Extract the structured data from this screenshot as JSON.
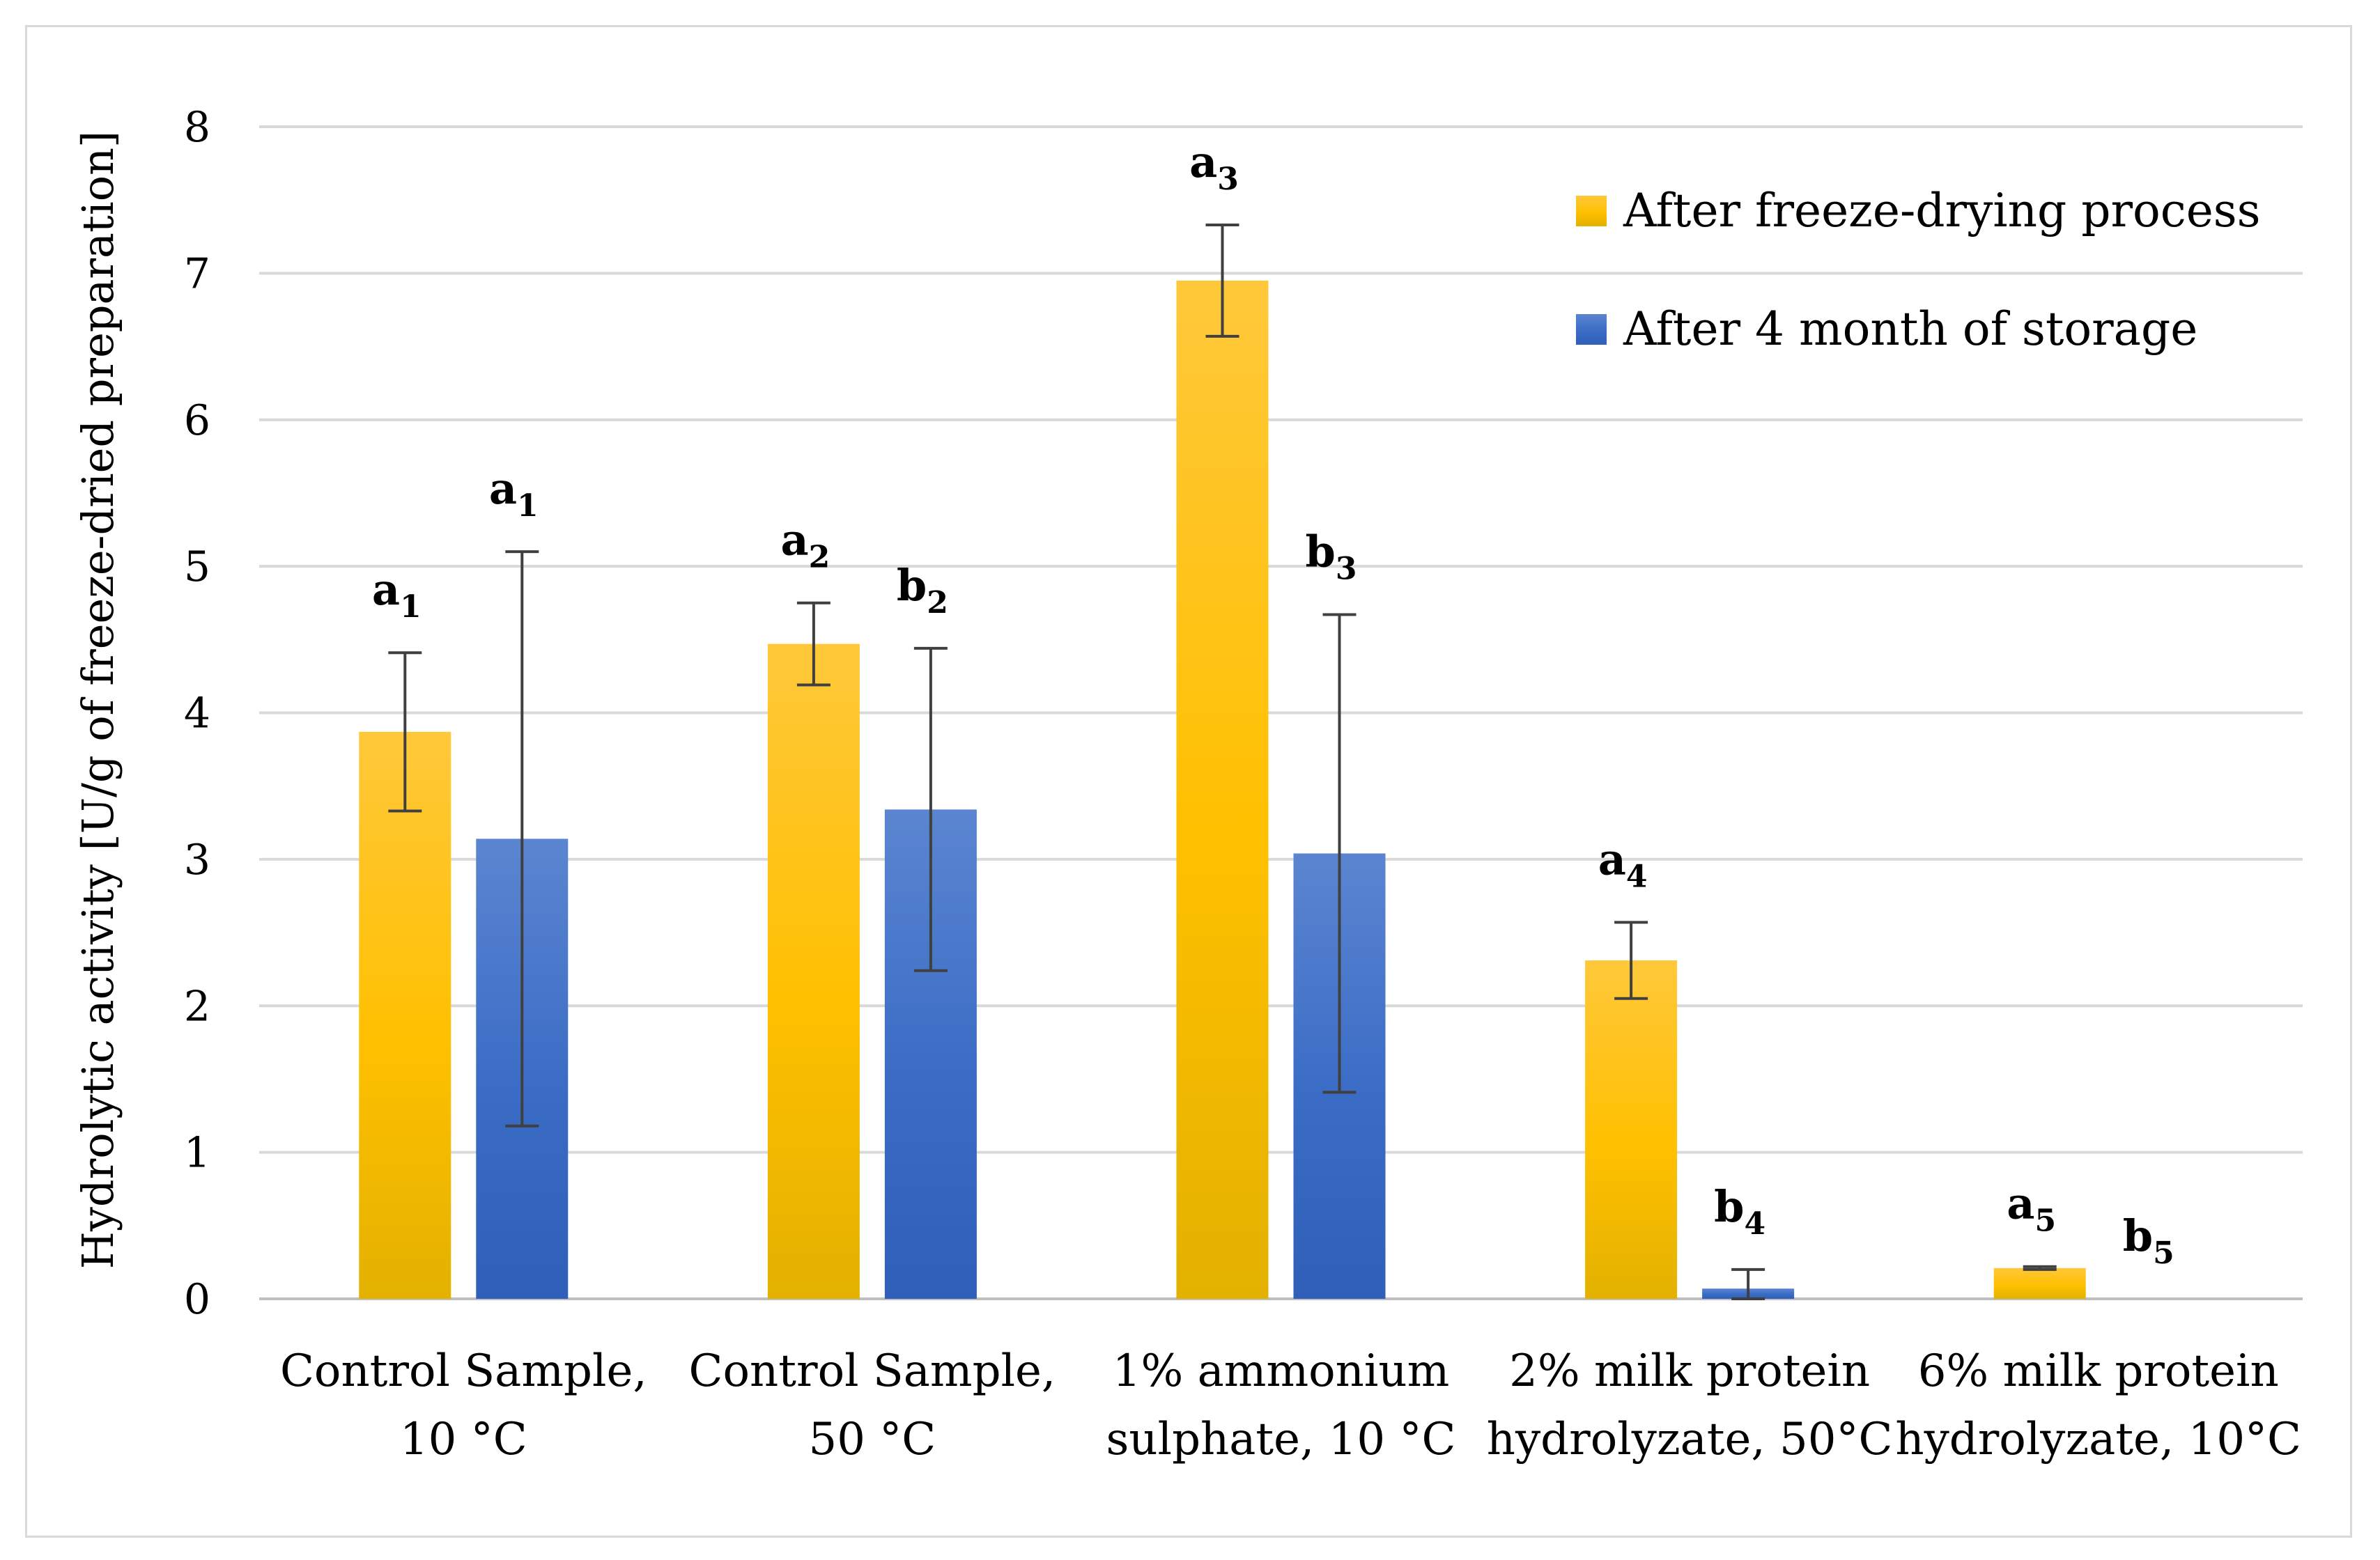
{
  "chart_data": {
    "type": "bar",
    "title": "",
    "xlabel": "",
    "ylabel": "Hydrolytic activity [U/g of freeze-dried preparation]",
    "ylim": [
      0,
      8
    ],
    "yticks": [
      0,
      1,
      2,
      3,
      4,
      5,
      6,
      7,
      8
    ],
    "grid": true,
    "legend_position": "top-right",
    "categories": [
      [
        "Control Sample,",
        "10 °C"
      ],
      [
        "Control Sample,",
        "50 °C"
      ],
      [
        "1% ammonium",
        "sulphate, 10 °C"
      ],
      [
        "2% milk protein",
        "hydrolyzate, 50°C"
      ],
      [
        "6% milk protein",
        "hydrolyzate, 10°C"
      ]
    ],
    "series": [
      {
        "name": "After freeze-drying process",
        "color": "#FFC000",
        "values": [
          3.87,
          4.47,
          6.95,
          2.31,
          0.21
        ],
        "errors": [
          0.54,
          0.28,
          0.38,
          0.26,
          0.01
        ],
        "labels": [
          {
            "letter": "a",
            "sub": "1"
          },
          {
            "letter": "a",
            "sub": "2"
          },
          {
            "letter": "a",
            "sub": "3"
          },
          {
            "letter": "a",
            "sub": "4"
          },
          {
            "letter": "a",
            "sub": "5"
          }
        ]
      },
      {
        "name": "After 4 month of storage",
        "color": "#4472C4",
        "values": [
          3.14,
          3.34,
          3.04,
          0.07,
          0.0
        ],
        "errors": [
          1.96,
          1.1,
          1.63,
          0.13,
          0.0
        ],
        "labels": [
          {
            "letter": "a",
            "sub": "1"
          },
          {
            "letter": "b",
            "sub": "2"
          },
          {
            "letter": "b",
            "sub": "3"
          },
          {
            "letter": "b",
            "sub": "4"
          },
          {
            "letter": "b",
            "sub": "5"
          }
        ]
      }
    ]
  }
}
